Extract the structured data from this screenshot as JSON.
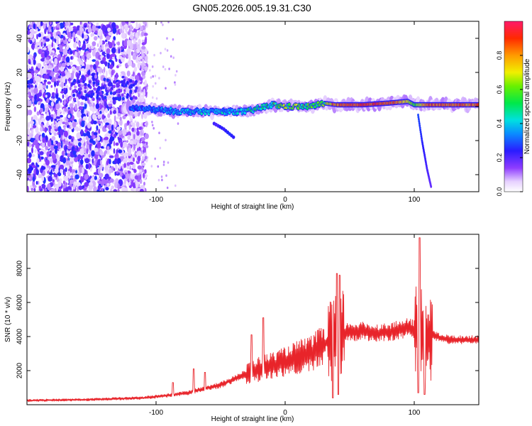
{
  "title": "GN05.2026.005.19.31.C30",
  "colors": {
    "axis": "#000000",
    "snr_line": "#e8242a",
    "background": "#ffffff"
  },
  "chart_data": [
    {
      "type": "heatmap",
      "title": "GN05.2026.005.19.31.C30",
      "xlabel": "Height of straight line (km)",
      "ylabel": "Frequency (Hz)",
      "xlim": [
        -200,
        150
      ],
      "ylim": [
        -50,
        50
      ],
      "xticks": [
        -100,
        0,
        100
      ],
      "yticks": [
        -40,
        -20,
        0,
        20,
        40
      ],
      "colorbar": {
        "label": "Normalized spectral amplitude",
        "range": [
          0,
          1
        ],
        "ticks": [
          "0.0",
          "0.2",
          "0.4",
          "0.6",
          "0.8"
        ],
        "colormap": "rainbow (white-violet-blue-cyan-green-yellow-orange-red)"
      },
      "dominant_ridge": {
        "description": "main frequency ridge vs height",
        "x": [
          -115,
          -100,
          -80,
          -60,
          -40,
          -30,
          -20,
          -10,
          0,
          10,
          20,
          30,
          40,
          60,
          80,
          95,
          100,
          110,
          150
        ],
        "y": [
          -1,
          -2,
          -3,
          -3,
          -3,
          -3,
          -1,
          1,
          0,
          0,
          0,
          2,
          1,
          1,
          2,
          3,
          1,
          1,
          1
        ],
        "amplitude": [
          0.3,
          0.35,
          0.4,
          0.4,
          0.4,
          0.45,
          0.5,
          0.55,
          0.6,
          0.6,
          0.55,
          0.6,
          0.9,
          0.95,
          0.95,
          0.8,
          0.6,
          0.9,
          0.9
        ]
      },
      "secondary_branch": {
        "description": "falling frequency feature",
        "x": [
          -55,
          -48,
          -40
        ],
        "y": [
          -10,
          -13,
          -18
        ]
      },
      "tail_branch": {
        "description": "steep falling feature after 100 km",
        "x": [
          103,
          106,
          110,
          113
        ],
        "y": [
          -5,
          -20,
          -37,
          -47
        ]
      },
      "noise_region": {
        "x_range": [
          -200,
          -115
        ],
        "note": "scattered low-amplitude noise"
      }
    },
    {
      "type": "line",
      "xlabel": "Height of straight line (km)",
      "ylabel": "SNR (10 * v/v)",
      "xlim": [
        -200,
        150
      ],
      "ylim": [
        0,
        10000
      ],
      "xticks": [
        -100,
        0,
        100
      ],
      "yticks": [
        2000,
        4000,
        6000,
        8000
      ],
      "series": [
        {
          "name": "SNR",
          "color": "#e8242a",
          "trend_x": [
            -200,
            -150,
            -110,
            -90,
            -75,
            -60,
            -50,
            -40,
            -30,
            -20,
            -10,
            0,
            10,
            20,
            30,
            35,
            40,
            45,
            50,
            60,
            70,
            80,
            90,
            95,
            100,
            105,
            110,
            115,
            120,
            130,
            140,
            150
          ],
          "trend_y": [
            250,
            300,
            400,
            550,
            700,
            1000,
            1150,
            1500,
            1800,
            2100,
            2300,
            2500,
            2800,
            3000,
            3500,
            3800,
            3800,
            4200,
            4300,
            4300,
            4200,
            4250,
            4400,
            4500,
            4400,
            4400,
            4000,
            4100,
            3900,
            3800,
            3800,
            3800
          ],
          "peaks": [
            {
              "x": -87,
              "y": 1300
            },
            {
              "x": -71,
              "y": 2100
            },
            {
              "x": -62,
              "y": 1900
            },
            {
              "x": -26,
              "y": 4100
            },
            {
              "x": -17,
              "y": 5100
            },
            {
              "x": 37,
              "y": 6800
            },
            {
              "x": 40,
              "y": 7700
            },
            {
              "x": 42,
              "y": 7600
            },
            {
              "x": 104,
              "y": 9800
            },
            {
              "x": 108,
              "y": 7000
            }
          ],
          "troughs": [
            {
              "x": 37,
              "y": 400
            },
            {
              "x": 41,
              "y": 600
            },
            {
              "x": 103,
              "y": 700
            },
            {
              "x": 108,
              "y": 600
            }
          ]
        }
      ]
    }
  ]
}
